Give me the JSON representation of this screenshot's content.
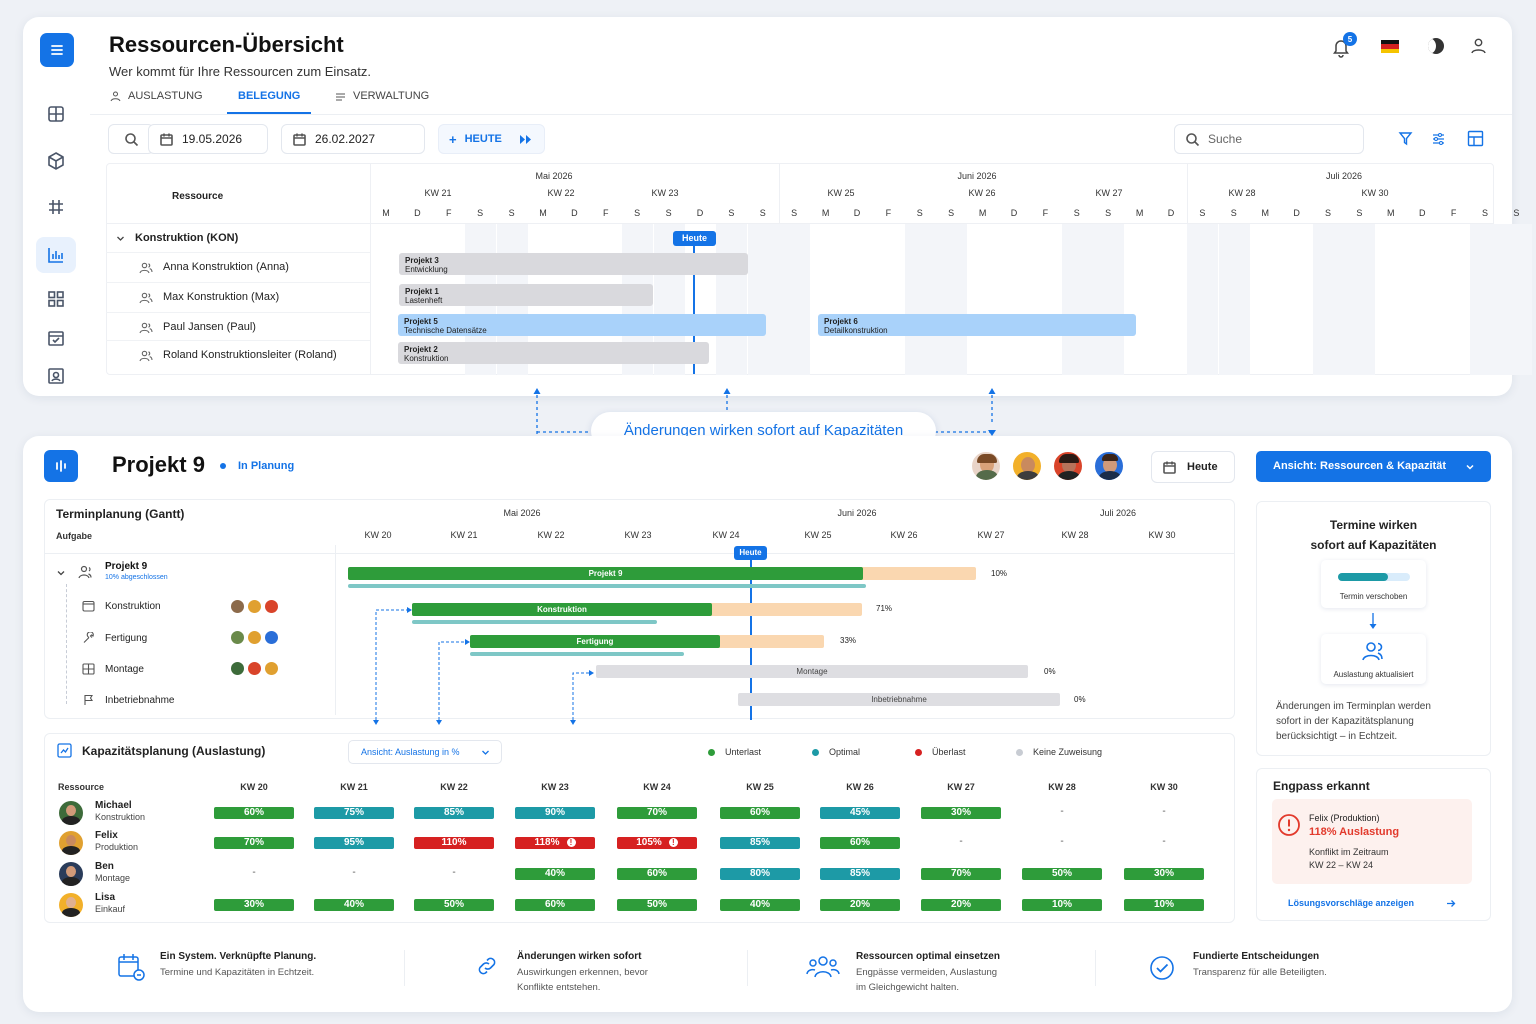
{
  "top": {
    "title": "Ressourcen-Übersicht",
    "subtitle": "Wer kommt für Ihre Ressourcen zum Einsatz.",
    "tabs": [
      "AUSLASTUNG",
      "BELEGUNG",
      "VERWALTUNG"
    ],
    "active_tab": "BELEGUNG",
    "notification_count": "5",
    "date_from": "19.05.2026",
    "date_to": "26.02.2027",
    "today_button": "HEUTE",
    "search_placeholder": "Suche",
    "resource_header": "Ressource",
    "months": [
      "Mai 2026",
      "Juni 2026",
      "Juli 2026"
    ],
    "weeks": [
      "KW 21",
      "KW 22",
      "KW 23",
      "KW 25",
      "KW 26",
      "KW 27",
      "KW 28",
      "KW 30"
    ],
    "days": [
      "M",
      "D",
      "F",
      "S",
      "S",
      "M",
      "D",
      "F",
      "S",
      "S",
      "D",
      "S",
      "S",
      "S",
      "M",
      "D",
      "F",
      "S",
      "S",
      "M",
      "D",
      "F",
      "S",
      "S",
      "M",
      "D",
      "S",
      "S",
      "M",
      "D",
      "S",
      "S",
      "M",
      "D",
      "F",
      "S",
      "S"
    ],
    "group": "Konstruktion (KON)",
    "today_marker": "Heute",
    "resources": [
      "Anna Konstruktion (Anna)",
      "Max Konstruktion (Max)",
      "Paul Jansen (Paul)",
      "Roland Konstruktionsleiter (Roland)"
    ],
    "bars": [
      {
        "name": "Projekt 3",
        "sub": "Entwicklung"
      },
      {
        "name": "Projekt 1",
        "sub": "Lastenheft"
      },
      {
        "name": "Projekt 5",
        "sub": "Technische Datensätze"
      },
      {
        "name": "Projekt 6",
        "sub": "Detailkonstruktion"
      },
      {
        "name": "Projekt 2",
        "sub": "Konstruktion"
      }
    ]
  },
  "callout": "Änderungen wirken sofort auf Kapazitäten",
  "project": {
    "title": "Projekt 9",
    "status": "In Planung",
    "today_button": "Heute",
    "view_button": "Ansicht: Ressourcen & Kapazität",
    "gantt_title": "Terminplanung (Gantt)",
    "task_header": "Aufgabe",
    "months": [
      "Mai 2026",
      "Juni 2026",
      "Juli 2026"
    ],
    "weeks": [
      "KW 20",
      "KW 21",
      "KW 22",
      "KW 23",
      "KW 24",
      "KW 25",
      "KW 26",
      "KW 27",
      "KW 28",
      "KW 30"
    ],
    "today_marker": "Heute",
    "root_task": "Projekt 9",
    "root_progress": "10% abgeschlossen",
    "tasks": [
      "Konstruktion",
      "Fertigung",
      "Montage",
      "Inbetriebnahme"
    ],
    "bar_labels": [
      "Projekt 9",
      "Konstruktion",
      "Fertigung",
      "Montage",
      "Inbetriebnahme"
    ],
    "bar_percent": [
      "10%",
      "71%",
      "33%",
      "0%",
      "0%"
    ]
  },
  "capacity": {
    "title": "Kapazitätsplanung (Auslastung)",
    "view_select": "Ansicht: Auslastung in %",
    "legend": [
      {
        "label": "Unterlast",
        "color": "#2e9c3a"
      },
      {
        "label": "Optimal",
        "color": "#1d9aa6"
      },
      {
        "label": "Überlast",
        "color": "#d62121"
      },
      {
        "label": "Keine Zuweisung",
        "color": "#c8ccd3"
      }
    ],
    "resource_header": "Ressource",
    "weeks": [
      "KW 20",
      "KW 21",
      "KW 22",
      "KW 23",
      "KW 24",
      "KW 25",
      "KW 26",
      "KW 27",
      "KW 28",
      "KW 30"
    ],
    "rows": [
      {
        "name": "Michael",
        "role": "Konstruktion",
        "cells": [
          "60%",
          "75%",
          "85%",
          "90%",
          "70%",
          "60%",
          "45%",
          "30%",
          "-",
          "-"
        ],
        "colors": [
          "g",
          "t",
          "t",
          "t",
          "g",
          "g",
          "t",
          "g",
          "",
          ""
        ]
      },
      {
        "name": "Felix",
        "role": "Produktion",
        "cells": [
          "70%",
          "95%",
          "110%",
          "118%",
          "105%",
          "85%",
          "60%",
          "-",
          "-",
          "-"
        ],
        "colors": [
          "g",
          "t",
          "r",
          "r",
          "r",
          "t",
          "g",
          "",
          "",
          ""
        ]
      },
      {
        "name": "Ben",
        "role": "Montage",
        "cells": [
          "-",
          "-",
          "-",
          "40%",
          "60%",
          "80%",
          "85%",
          "70%",
          "50%",
          "30%"
        ],
        "colors": [
          "",
          "",
          "",
          "g",
          "g",
          "t",
          "t",
          "g",
          "g",
          "g"
        ]
      },
      {
        "name": "Lisa",
        "role": "Einkauf",
        "cells": [
          "30%",
          "40%",
          "50%",
          "60%",
          "50%",
          "40%",
          "20%",
          "20%",
          "10%",
          "10%"
        ],
        "colors": [
          "g",
          "g",
          "g",
          "g",
          "g",
          "g",
          "g",
          "g",
          "g",
          "g"
        ]
      }
    ]
  },
  "side": {
    "info_title_1": "Termine wirken",
    "info_title_2": "sofort auf Kapazitäten",
    "step1": "Termin verschoben",
    "step2": "Auslastung aktualisiert",
    "info_text": [
      "Änderungen im Terminplan werden",
      "sofort in der Kapazitätsplanung",
      "berücksichtigt – in Echtzeit."
    ],
    "bottleneck_title": "Engpass erkannt",
    "bottleneck_person": "Felix (Produktion)",
    "bottleneck_load": "118% Auslastung",
    "bottleneck_conflict": "Konflikt im Zeitraum",
    "bottleneck_range": "KW 22 – KW 24",
    "solutions_link": "Lösungsvorschläge anzeigen"
  },
  "features": [
    {
      "title": "Ein System. Verknüpfte Planung.",
      "text1": "Termine und Kapazitäten in Echtzeit.",
      "text2": ""
    },
    {
      "title": "Änderungen wirken sofort",
      "text1": "Auswirkungen erkennen, bevor",
      "text2": "Konflikte entstehen."
    },
    {
      "title": "Ressourcen optimal einsetzen",
      "text1": "Engpässe vermeiden, Auslastung",
      "text2": "im Gleichgewicht halten."
    },
    {
      "title": "Fundierte Entscheidungen",
      "text1": "Transparenz für alle Beteiligten.",
      "text2": ""
    }
  ],
  "colors": {
    "accent": "#1473e6",
    "unterlast": "#2e9c3a",
    "optimal": "#1d9aa6",
    "ueberlast": "#d62121"
  }
}
